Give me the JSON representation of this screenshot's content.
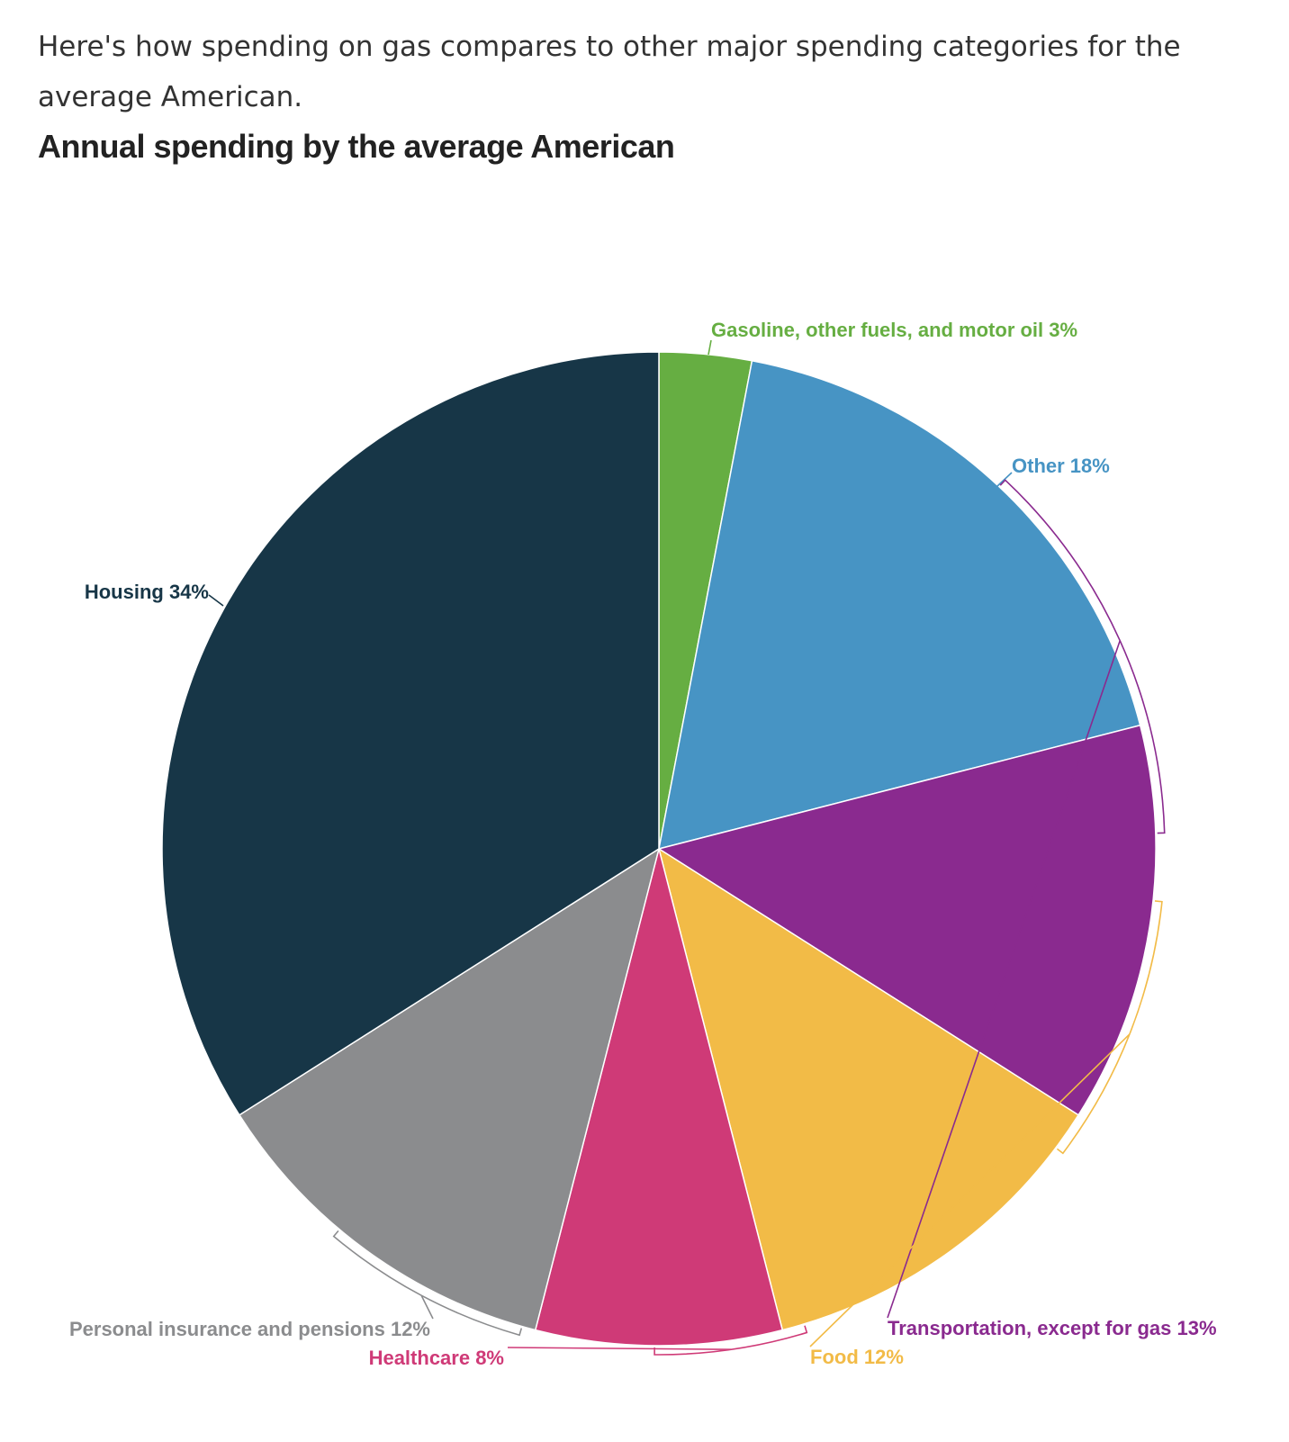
{
  "intro_text": "Here's how spending on gas compares to other major spending categories for the average American.",
  "chart_data": {
    "type": "pie",
    "title": "Annual spending by the average American",
    "unit": "%",
    "slices": [
      {
        "label": "Gasoline, other fuels, and motor oil",
        "value": 3,
        "display": "3%",
        "color": "#66ae42"
      },
      {
        "label": "Other",
        "value": 18,
        "display": "18%",
        "color": "#4794c4"
      },
      {
        "label": "Transportation, except for gas",
        "value": 13,
        "display": "13%",
        "color": "#8a2a8f"
      },
      {
        "label": "Food",
        "value": 12,
        "display": "12%",
        "color": "#f2bb47"
      },
      {
        "label": "Healthcare",
        "value": 8,
        "display": "8%",
        "color": "#cf3a77"
      },
      {
        "label": "Personal insurance and pensions",
        "value": 12,
        "display": "12%",
        "color": "#8b8c8e"
      },
      {
        "label": "Housing",
        "value": 34,
        "display": "34%",
        "color": "#173647"
      }
    ]
  }
}
